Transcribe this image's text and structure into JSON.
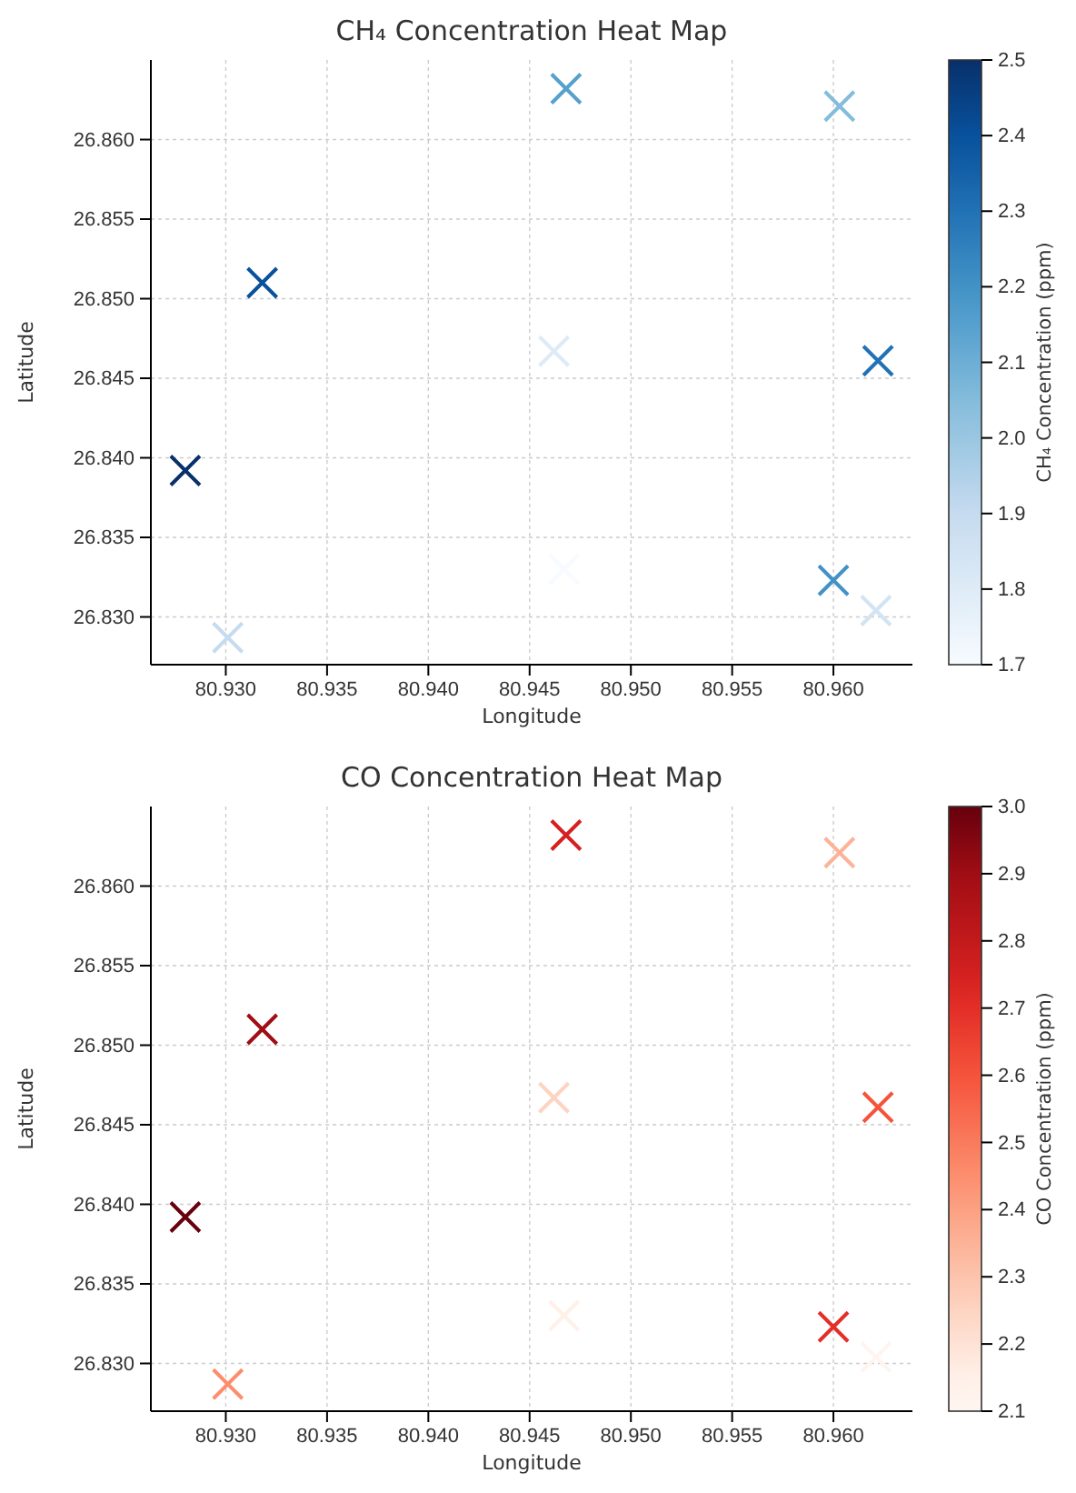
{
  "chart_data": [
    {
      "type": "scatter",
      "title": "CH₄ Concentration Heat Map",
      "xlabel": "Longitude",
      "ylabel": "Latitude",
      "clabel": "CH₄ Concentration (ppm)",
      "marker": "cross",
      "grid": true,
      "x": [
        80.928,
        80.9318,
        80.9301,
        80.9468,
        80.9462,
        80.9467,
        80.9603,
        80.9622,
        80.96,
        80.9621
      ],
      "series": [
        {
          "colors": [
            "#08306b",
            "#08519c",
            "#c6dbef",
            "#56a0ce",
            "#deebf7",
            "#f7fbff",
            "#84bcdb",
            "#2171b5",
            "#4292c6",
            "#d2e3f3"
          ],
          "values": [
            26.8392,
            26.851,
            26.8287,
            26.8632,
            26.8467,
            26.833,
            26.8621,
            26.8461,
            26.8323,
            26.8304
          ],
          "cvalues": [
            2.5,
            2.4,
            1.9,
            2.15,
            1.8,
            1.7,
            2.05,
            2.3,
            2.2,
            1.85
          ]
        }
      ],
      "xlim": [
        80.9263,
        80.9639
      ],
      "xticks": [
        {
          "value": 80.93,
          "label": "80.930"
        },
        {
          "value": 80.935,
          "label": "80.935"
        },
        {
          "value": 80.94,
          "label": "80.940"
        },
        {
          "value": 80.945,
          "label": "80.945"
        },
        {
          "value": 80.95,
          "label": "80.950"
        },
        {
          "value": 80.955,
          "label": "80.955"
        },
        {
          "value": 80.96,
          "label": "80.960"
        }
      ],
      "ylim": [
        26.827,
        26.865
      ],
      "yticks": [
        {
          "value": 26.83,
          "label": "26.830"
        },
        26.835,
        {
          "value": 26.84,
          "label": "26.840"
        },
        26.845,
        {
          "value": 26.85,
          "label": "26.850"
        },
        26.855,
        {
          "value": 26.86,
          "label": "26.860"
        }
      ],
      "clim": [
        1.7,
        2.5
      ],
      "cticks": [
        1.7,
        1.8,
        1.9,
        {
          "value": 2.0,
          "label": "2.0"
        },
        2.1,
        2.2,
        2.3,
        2.4,
        2.5
      ]
    },
    {
      "type": "scatter",
      "title": "CO Concentration Heat Map",
      "xlabel": "Longitude",
      "ylabel": "Latitude",
      "clabel": "CO Concentration (ppm)",
      "marker": "cross",
      "grid": true,
      "x": [
        80.928,
        80.9318,
        80.9301,
        80.9468,
        80.9462,
        80.9467,
        80.9603,
        80.9622,
        80.96,
        80.9621
      ],
      "series": [
        {
          "colors": [
            "#67000d",
            "#a00d14",
            "#fc8e6e",
            "#d42020",
            "#fdd4c2",
            "#fff0e8",
            "#fcb398",
            "#f5533b",
            "#e32f27",
            "#fff5f0"
          ],
          "values": [
            26.8392,
            26.851,
            26.8287,
            26.8632,
            26.8467,
            26.833,
            26.8621,
            26.8461,
            26.8323,
            26.8304
          ],
          "cvalues": [
            3.0,
            2.9,
            2.45,
            2.75,
            2.25,
            2.15,
            2.35,
            2.6,
            2.7,
            2.1
          ]
        }
      ],
      "xlim": [
        80.9263,
        80.9639
      ],
      "xticks": [
        {
          "value": 80.93,
          "label": "80.930"
        },
        {
          "value": 80.935,
          "label": "80.935"
        },
        {
          "value": 80.94,
          "label": "80.940"
        },
        {
          "value": 80.945,
          "label": "80.945"
        },
        {
          "value": 80.95,
          "label": "80.950"
        },
        {
          "value": 80.955,
          "label": "80.955"
        },
        {
          "value": 80.96,
          "label": "80.960"
        }
      ],
      "ylim": [
        26.827,
        26.865
      ],
      "yticks": [
        {
          "value": 26.83,
          "label": "26.830"
        },
        26.835,
        {
          "value": 26.84,
          "label": "26.840"
        },
        26.845,
        {
          "value": 26.85,
          "label": "26.850"
        },
        26.855,
        {
          "value": 26.86,
          "label": "26.860"
        }
      ],
      "clim": [
        2.1,
        3.0
      ],
      "cticks": [
        2.1,
        2.2,
        2.3,
        2.4,
        2.5,
        2.6,
        2.7,
        2.8,
        2.9,
        {
          "value": 3.0,
          "label": "3.0"
        }
      ]
    }
  ]
}
